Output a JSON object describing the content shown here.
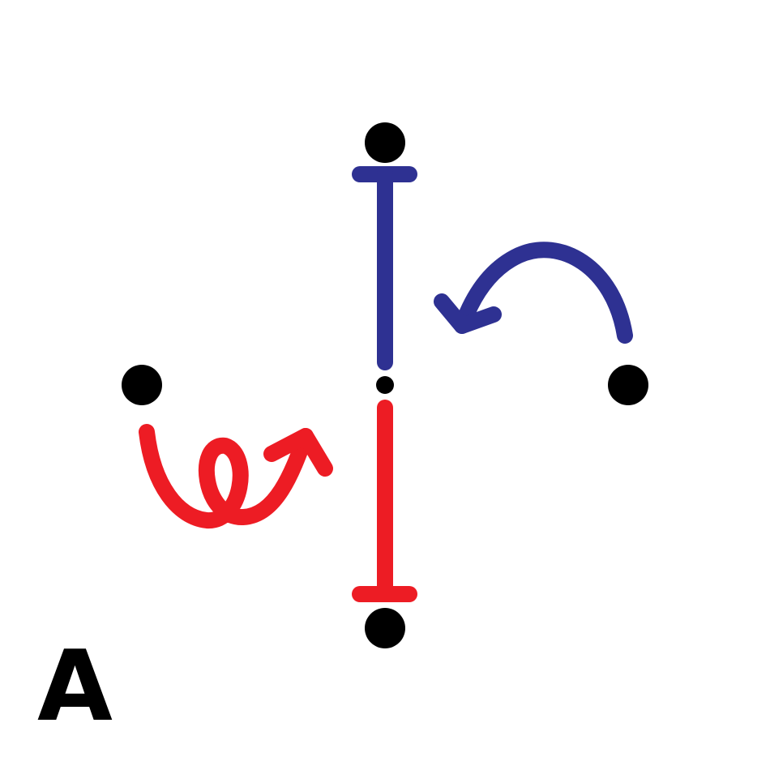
{
  "panel_label": "A",
  "colors": {
    "background": "#ffffff",
    "dots": "#000000",
    "upper_path": "#2e3192",
    "lower_path": "#ed1c24"
  },
  "nodes": [
    {
      "name": "top-node",
      "shape": "large-dot"
    },
    {
      "name": "left-node",
      "shape": "large-dot"
    },
    {
      "name": "center-node",
      "shape": "small-dot"
    },
    {
      "name": "right-node",
      "shape": "large-dot"
    },
    {
      "name": "bottom-node",
      "shape": "large-dot"
    }
  ],
  "paths": [
    {
      "name": "upper-bar",
      "color": "upper_path",
      "end_cap": "flat-top"
    },
    {
      "name": "lower-bar",
      "color": "lower_path",
      "end_cap": "flat-bottom"
    }
  ],
  "arrows": [
    {
      "name": "curved-arrow",
      "color": "upper_path",
      "style": "arc"
    },
    {
      "name": "loop-arrow",
      "color": "lower_path",
      "style": "loop"
    }
  ]
}
